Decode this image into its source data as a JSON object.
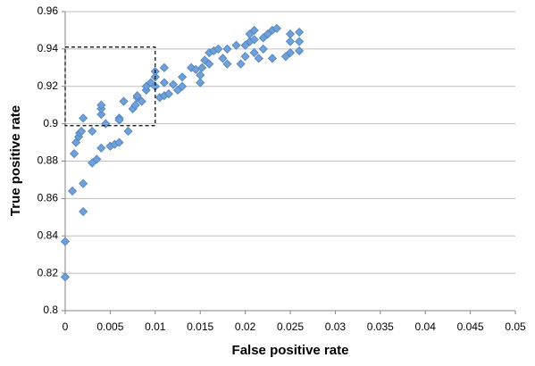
{
  "chart_data": {
    "type": "scatter",
    "x_label": "False positive rate",
    "y_label": "True positive rate",
    "xlim": [
      0,
      0.05
    ],
    "xticks": [
      0,
      0.005,
      0.01,
      0.015,
      0.02,
      0.025,
      0.03,
      0.035,
      0.04,
      0.045,
      0.05
    ],
    "ylim": [
      0.8,
      0.96
    ],
    "yticks": [
      0.8,
      0.82,
      0.84,
      0.86,
      0.88,
      0.9,
      0.92,
      0.94,
      0.96
    ],
    "grid": true,
    "color": "#6fa0d8",
    "highlight_box": {
      "xlim": [
        0,
        0.01
      ],
      "ylim": [
        0.899,
        0.941
      ]
    },
    "x": [
      0,
      0,
      0.0008,
      0.001,
      0.0012,
      0.0015,
      0.0016,
      0.0018,
      0.002,
      0.002,
      0.002,
      0.003,
      0.003,
      0.0035,
      0.004,
      0.004,
      0.004,
      0.004,
      0.0045,
      0.005,
      0.0055,
      0.006,
      0.006,
      0.006,
      0.0065,
      0.007,
      0.0075,
      0.0078,
      0.008,
      0.008,
      0.0085,
      0.009,
      0.009,
      0.0095,
      0.01,
      0.01,
      0.01,
      0.0105,
      0.011,
      0.011,
      0.011,
      0.0115,
      0.012,
      0.0125,
      0.013,
      0.013,
      0.014,
      0.0145,
      0.015,
      0.015,
      0.0152,
      0.0155,
      0.016,
      0.016,
      0.0165,
      0.017,
      0.0175,
      0.018,
      0.018,
      0.019,
      0.0195,
      0.02,
      0.02,
      0.0205,
      0.0205,
      0.021,
      0.021,
      0.021,
      0.0215,
      0.022,
      0.022,
      0.0225,
      0.023,
      0.023,
      0.0235,
      0.0245,
      0.025,
      0.025,
      0.025,
      0.026,
      0.026,
      0.026
    ],
    "values": [
      0.818,
      0.837,
      0.864,
      0.884,
      0.89,
      0.893,
      0.895,
      0.896,
      0.868,
      0.853,
      0.903,
      0.879,
      0.896,
      0.881,
      0.887,
      0.905,
      0.908,
      0.91,
      0.9,
      0.888,
      0.889,
      0.89,
      0.903,
      0.902,
      0.912,
      0.896,
      0.908,
      0.91,
      0.914,
      0.915,
      0.912,
      0.918,
      0.92,
      0.922,
      0.925,
      0.928,
      0.92,
      0.914,
      0.915,
      0.922,
      0.93,
      0.916,
      0.921,
      0.918,
      0.925,
      0.92,
      0.93,
      0.929,
      0.922,
      0.926,
      0.93,
      0.934,
      0.938,
      0.932,
      0.939,
      0.94,
      0.935,
      0.94,
      0.932,
      0.942,
      0.932,
      0.942,
      0.936,
      0.944,
      0.948,
      0.95,
      0.945,
      0.938,
      0.935,
      0.94,
      0.946,
      0.948,
      0.95,
      0.935,
      0.951,
      0.936,
      0.938,
      0.944,
      0.948,
      0.939,
      0.944,
      0.949
    ]
  }
}
